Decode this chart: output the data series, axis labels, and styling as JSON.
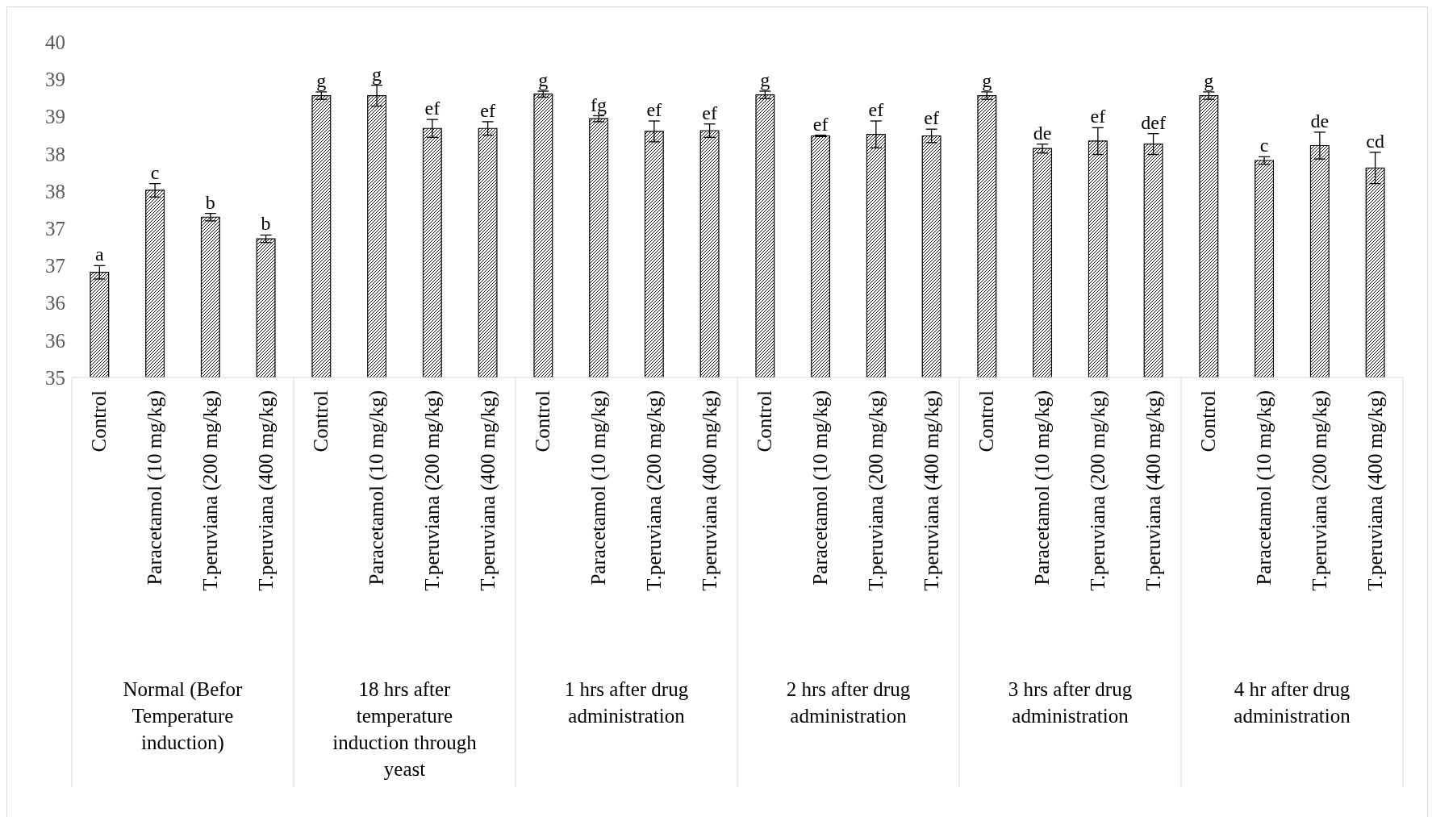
{
  "chart_data": {
    "type": "bar",
    "categories": [
      "Control",
      "Paracetamol (10 mg/kg)",
      "T.peruviana (200 mg/kg)",
      "T.peruviana (400 mg/kg)",
      "Control",
      "Paracetamol (10 mg/kg)",
      "T.peruviana (200 mg/kg)",
      "T.peruviana (400 mg/kg)",
      "Control",
      "Paracetamol (10 mg/kg)",
      "T.peruviana (200 mg/kg)",
      "T.peruviana (400 mg/kg)",
      "Control",
      "Paracetamol (10 mg/kg)",
      "T.peruviana (200 mg/kg)",
      "T.peruviana (400 mg/kg)",
      "Control",
      "Paracetamol (10 mg/kg)",
      "T.peruviana (200 mg/kg)",
      "T.peruviana (400 mg/kg)",
      "Control",
      "Paracetamol (10 mg/kg)",
      "T.peruviana (200 mg/kg)",
      "T.peruviana (400 mg/kg)"
    ],
    "series": [
      {
        "color": "#000000",
        "values": [
          36.41,
          37.51,
          37.15,
          36.86,
          38.78,
          38.78,
          38.34,
          38.34,
          38.8,
          38.47,
          38.3,
          38.31,
          38.79,
          38.24,
          38.26,
          38.24,
          38.78,
          38.07,
          38.17,
          38.13,
          38.78,
          37.91,
          38.11,
          37.81
        ],
        "errors": [
          0.09,
          0.09,
          0.05,
          0.05,
          0.05,
          0.14,
          0.12,
          0.09,
          0.04,
          0.04,
          0.14,
          0.09,
          0.05,
          0.01,
          0.18,
          0.09,
          0.05,
          0.06,
          0.18,
          0.14,
          0.05,
          0.05,
          0.18,
          0.21
        ],
        "value_labels": [
          "a",
          "c",
          "b",
          "b",
          "g",
          "g",
          "ef",
          "ef",
          "g",
          "fg",
          "ef",
          "ef",
          "g",
          "ef",
          "ef",
          "ef",
          "g",
          "de",
          "ef",
          "def",
          "g",
          "c",
          "de",
          "cd"
        ]
      }
    ],
    "annotations": [
      "Normal (Befor Temperature induction)",
      "18 hrs after temperature induction through yeast",
      "1 hrs after drug administration",
      "2 hrs after drug administration",
      "3 hrs after drug administration",
      "4 hr after drug administration"
    ],
    "ylim": [
      35,
      39.5
    ],
    "yticks": [
      35,
      {
        "value": 35.5,
        "label": "36"
      },
      36,
      {
        "value": 36.5,
        "label": "37"
      },
      37,
      {
        "value": 37.5,
        "label": "38"
      },
      38,
      {
        "value": 38.5,
        "label": "39"
      },
      39,
      {
        "value": 39.5,
        "label": "40"
      }
    ],
    "grid": false
  }
}
